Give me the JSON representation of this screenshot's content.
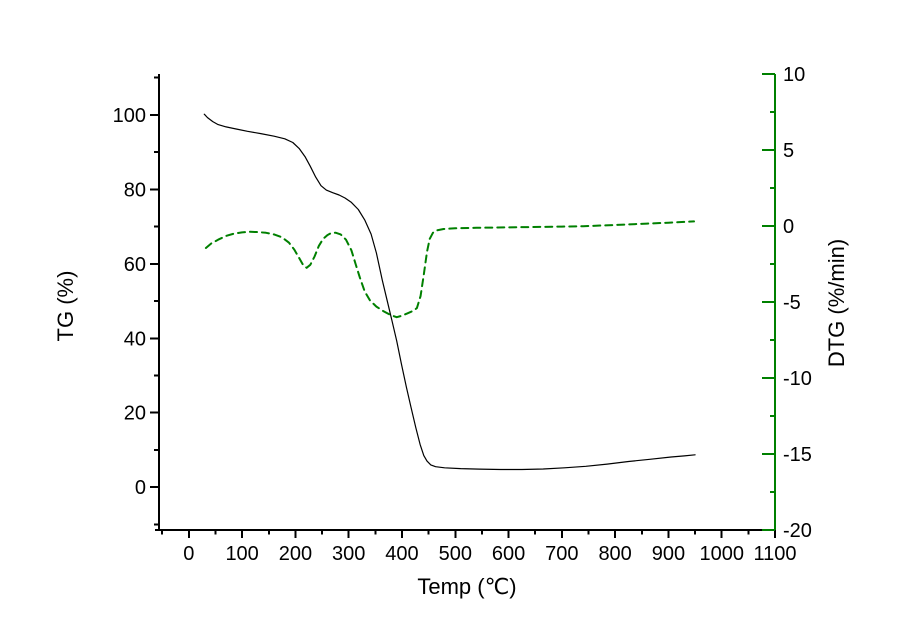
{
  "figure": {
    "background": "#ffffff"
  },
  "chart_data": {
    "type": "line",
    "title": "",
    "xlabel": "Temp (℃)",
    "ylabel_left": "TG (%)",
    "ylabel_right": "DTG (%/min)",
    "grid": false,
    "legend": "none",
    "axes": {
      "x": {
        "color": "#000000",
        "range": [
          -56,
          1100
        ],
        "major_ticks": [
          0,
          100,
          200,
          300,
          400,
          500,
          600,
          700,
          800,
          900,
          1000,
          1100
        ],
        "minor_ticks": [
          -50,
          50,
          150,
          250,
          350,
          450,
          550,
          650,
          750,
          850,
          950,
          1050
        ]
      },
      "left": {
        "color": "#000000",
        "range": [
          -11.5,
          111
        ],
        "major_ticks": [
          0,
          20,
          40,
          60,
          80,
          100
        ],
        "minor_ticks": [
          -10,
          10,
          30,
          50,
          70,
          90,
          110
        ]
      },
      "right": {
        "color": "#008000",
        "label_color": "#000000",
        "range": [
          -20,
          10
        ],
        "major_ticks": [
          10,
          5,
          0,
          -5,
          -10,
          -15,
          -20
        ],
        "minor_ticks": [
          7.5,
          2.5,
          -2.5,
          -7.5,
          -12.5,
          -17.5
        ]
      }
    },
    "series": [
      {
        "name": "TG",
        "axis": "left",
        "color": "#000000",
        "style": "solid",
        "points": [
          [
            29,
            100.2
          ],
          [
            35,
            99.3
          ],
          [
            45,
            98.2
          ],
          [
            55,
            97.4
          ],
          [
            70,
            96.8
          ],
          [
            90,
            96.2
          ],
          [
            110,
            95.6
          ],
          [
            135,
            95.0
          ],
          [
            160,
            94.3
          ],
          [
            180,
            93.6
          ],
          [
            195,
            92.6
          ],
          [
            207,
            91.0
          ],
          [
            218,
            88.8
          ],
          [
            228,
            86.2
          ],
          [
            238,
            83.3
          ],
          [
            248,
            81.0
          ],
          [
            258,
            79.8
          ],
          [
            270,
            79.1
          ],
          [
            282,
            78.5
          ],
          [
            293,
            77.7
          ],
          [
            305,
            76.5
          ],
          [
            318,
            74.6
          ],
          [
            330,
            71.8
          ],
          [
            342,
            68.0
          ],
          [
            352,
            62.9
          ],
          [
            363,
            55.6
          ],
          [
            372,
            50.2
          ],
          [
            381,
            44.8
          ],
          [
            390,
            39.3
          ],
          [
            399,
            33.0
          ],
          [
            408,
            27.0
          ],
          [
            417,
            21.5
          ],
          [
            426,
            16.0
          ],
          [
            434,
            11.5
          ],
          [
            441,
            8.5
          ],
          [
            447,
            7.0
          ],
          [
            454,
            6.0
          ],
          [
            463,
            5.5
          ],
          [
            480,
            5.2
          ],
          [
            510,
            5.0
          ],
          [
            545,
            4.85
          ],
          [
            585,
            4.75
          ],
          [
            625,
            4.75
          ],
          [
            665,
            4.9
          ],
          [
            705,
            5.2
          ],
          [
            745,
            5.6
          ],
          [
            785,
            6.2
          ],
          [
            825,
            6.9
          ],
          [
            865,
            7.5
          ],
          [
            905,
            8.1
          ],
          [
            930,
            8.4
          ],
          [
            950,
            8.7
          ]
        ]
      },
      {
        "name": "DTG",
        "axis": "right",
        "color": "#008000",
        "style": "dashed",
        "points": [
          [
            32,
            -1.45
          ],
          [
            42,
            -1.15
          ],
          [
            55,
            -0.9
          ],
          [
            70,
            -0.65
          ],
          [
            85,
            -0.5
          ],
          [
            100,
            -0.42
          ],
          [
            115,
            -0.38
          ],
          [
            130,
            -0.4
          ],
          [
            145,
            -0.45
          ],
          [
            160,
            -0.55
          ],
          [
            175,
            -0.75
          ],
          [
            188,
            -1.1
          ],
          [
            198,
            -1.55
          ],
          [
            207,
            -2.1
          ],
          [
            215,
            -2.6
          ],
          [
            221,
            -2.75
          ],
          [
            228,
            -2.55
          ],
          [
            236,
            -2.0
          ],
          [
            244,
            -1.3
          ],
          [
            252,
            -0.85
          ],
          [
            260,
            -0.6
          ],
          [
            268,
            -0.45
          ],
          [
            276,
            -0.45
          ],
          [
            285,
            -0.55
          ],
          [
            295,
            -0.9
          ],
          [
            305,
            -1.6
          ],
          [
            313,
            -2.5
          ],
          [
            321,
            -3.4
          ],
          [
            330,
            -4.3
          ],
          [
            340,
            -4.9
          ],
          [
            352,
            -5.3
          ],
          [
            365,
            -5.6
          ],
          [
            378,
            -5.85
          ],
          [
            390,
            -6.0
          ],
          [
            400,
            -5.9
          ],
          [
            410,
            -5.75
          ],
          [
            420,
            -5.6
          ],
          [
            428,
            -5.4
          ],
          [
            435,
            -4.6
          ],
          [
            441,
            -3.2
          ],
          [
            447,
            -1.7
          ],
          [
            452,
            -0.85
          ],
          [
            458,
            -0.45
          ],
          [
            466,
            -0.28
          ],
          [
            478,
            -0.2
          ],
          [
            500,
            -0.15
          ],
          [
            540,
            -0.12
          ],
          [
            580,
            -0.1
          ],
          [
            620,
            -0.08
          ],
          [
            660,
            -0.06
          ],
          [
            700,
            -0.04
          ],
          [
            740,
            -0.01
          ],
          [
            780,
            0.04
          ],
          [
            820,
            0.1
          ],
          [
            860,
            0.16
          ],
          [
            900,
            0.22
          ],
          [
            930,
            0.27
          ],
          [
            948,
            0.3
          ]
        ]
      }
    ]
  }
}
